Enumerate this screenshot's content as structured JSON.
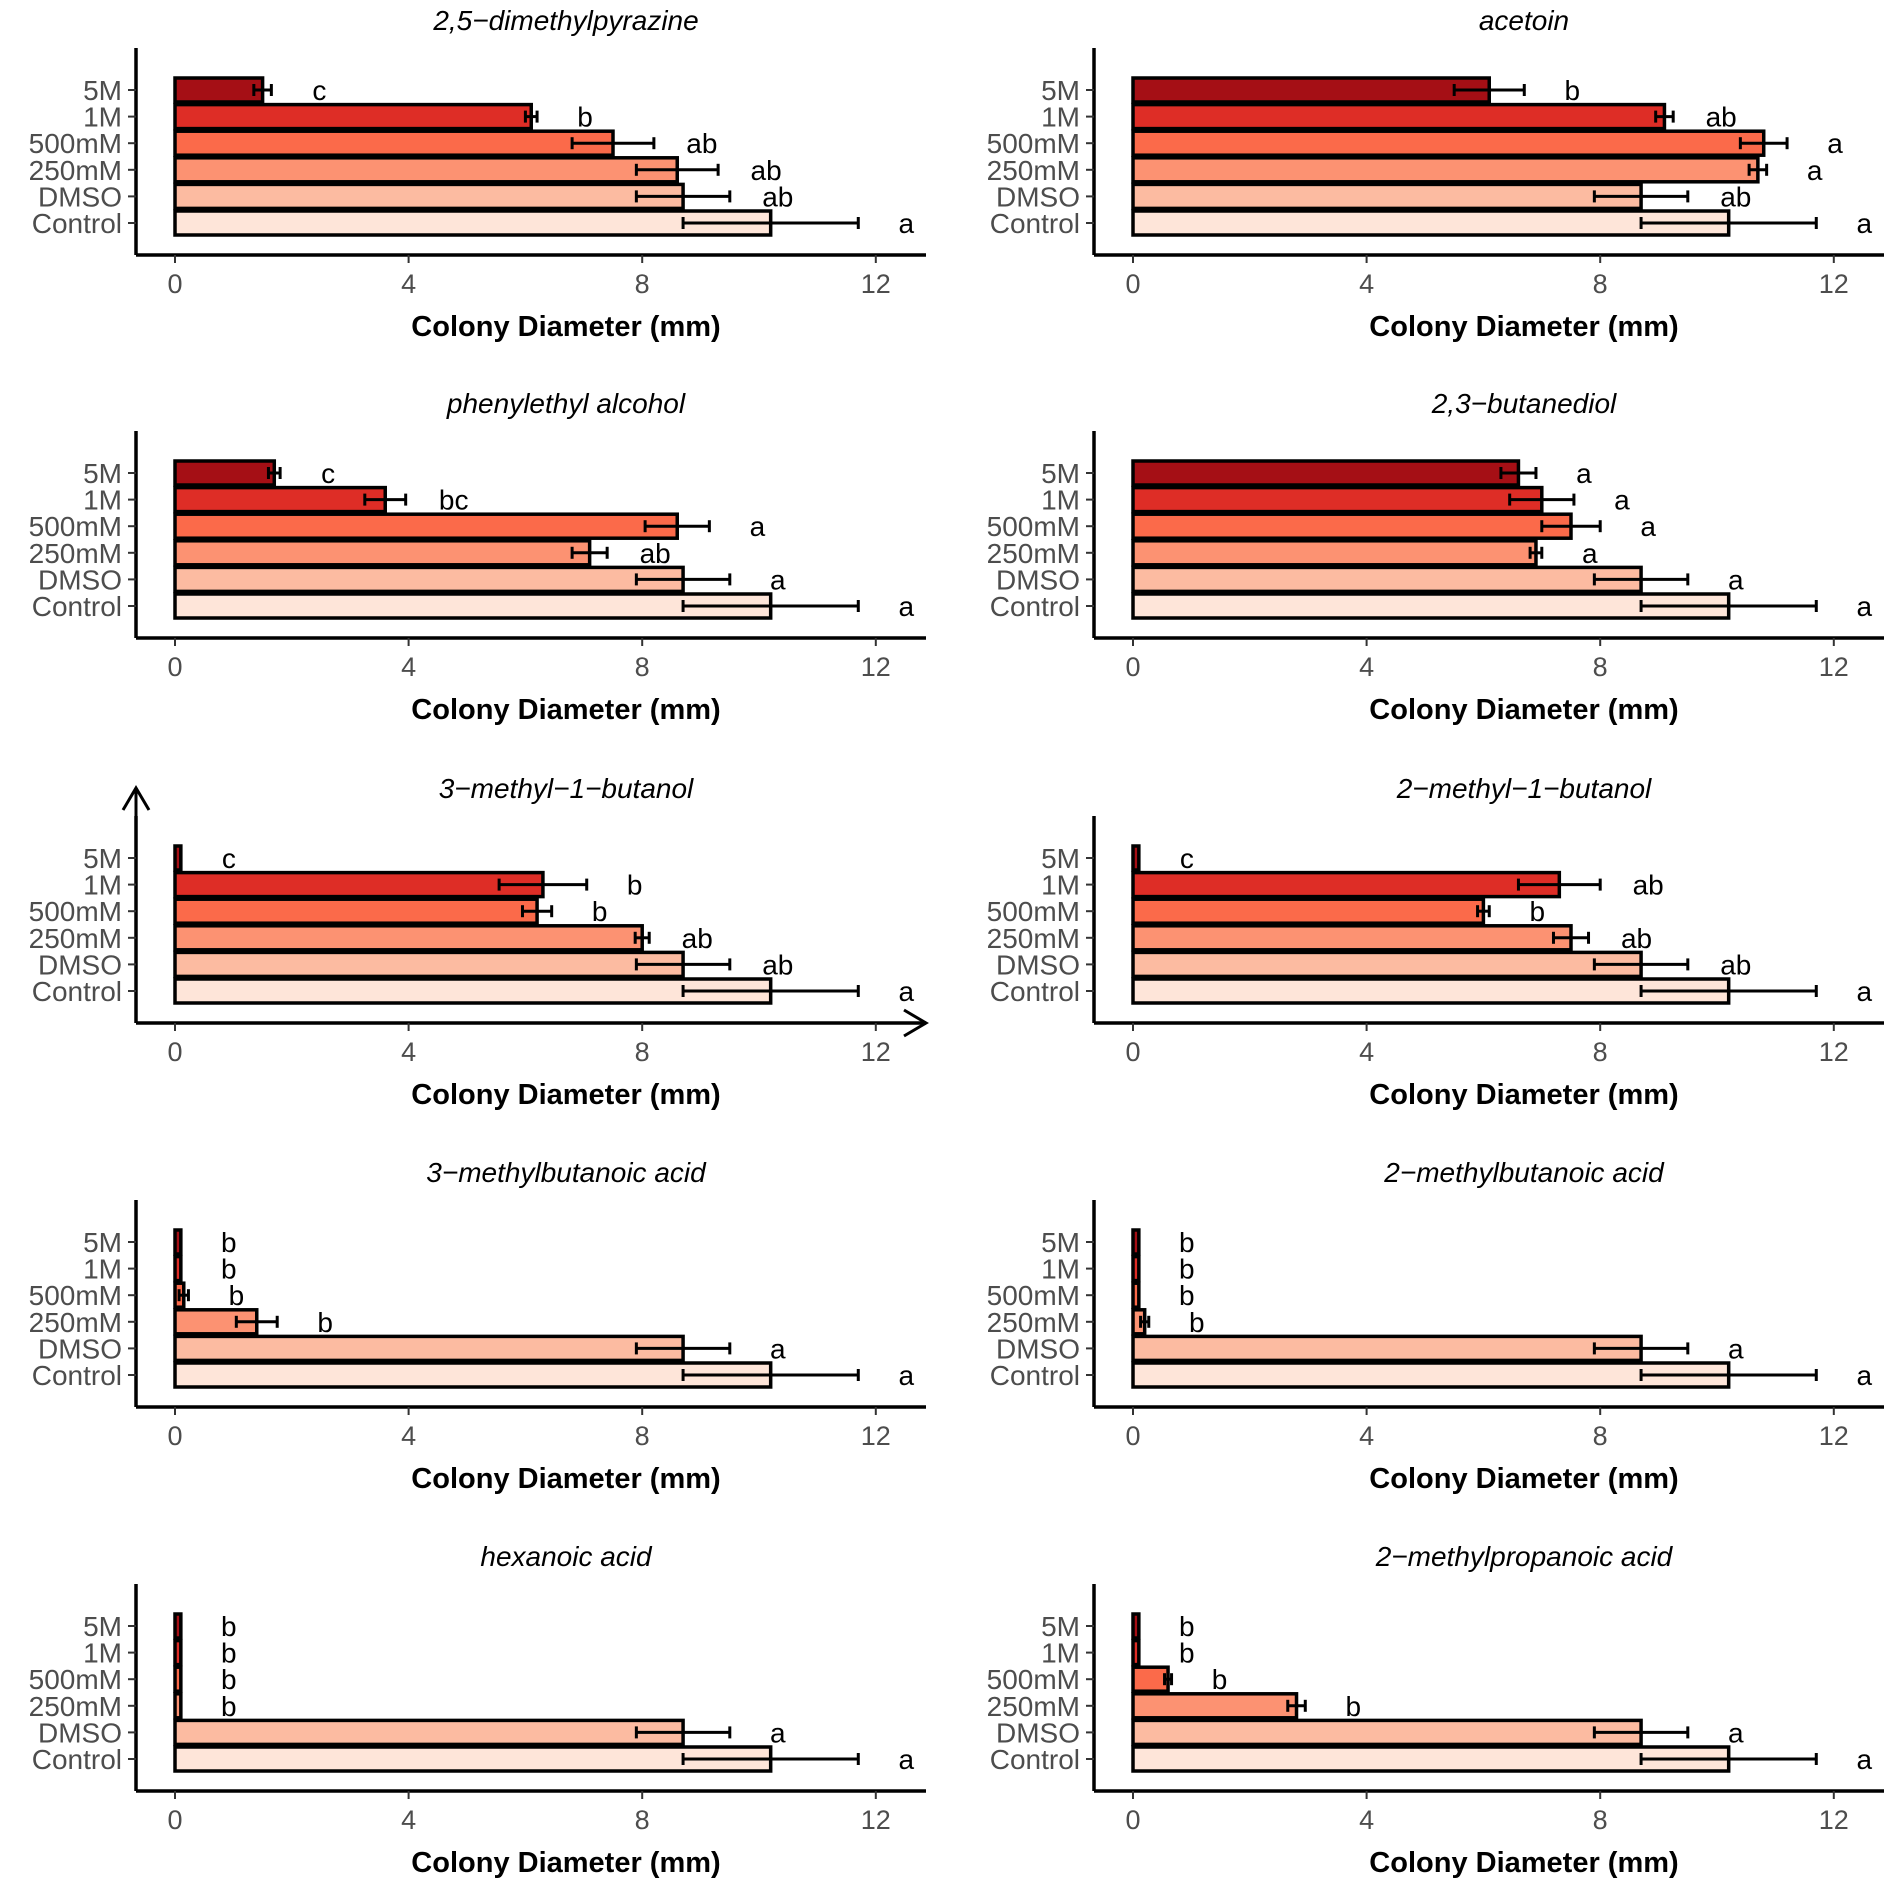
{
  "colors": {
    "5M": "#a50f15",
    "1M": "#de2d26",
    "500mM": "#fb6a4a",
    "250mM": "#fc9272",
    "DMSO": "#fcbba1",
    "Control": "#fee5d9"
  },
  "chart_data": [
    {
      "type": "bar",
      "orientation": "horizontal",
      "title": "2,5−dimethylpyrazine",
      "xlabel": "Colony Diameter (mm)",
      "xlim": [
        0,
        13
      ],
      "xticks": [
        "0",
        "4",
        "8",
        "12"
      ],
      "categories": [
        "5M",
        "1M",
        "500mM",
        "250mM",
        "DMSO",
        "Control"
      ],
      "values": [
        1.5,
        6.1,
        7.5,
        8.6,
        8.7,
        10.2
      ],
      "errors": [
        0.15,
        0.1,
        0.7,
        0.7,
        0.8,
        1.5
      ],
      "letters": [
        "c",
        "b",
        "ab",
        "ab",
        "ab",
        "a"
      ]
    },
    {
      "type": "bar",
      "orientation": "horizontal",
      "title": "acetoin",
      "xlabel": "Colony Diameter (mm)",
      "xlim": [
        0,
        13
      ],
      "xticks": [
        "0",
        "4",
        "8",
        "12"
      ],
      "categories": [
        "5M",
        "1M",
        "500mM",
        "250mM",
        "DMSO",
        "Control"
      ],
      "values": [
        6.1,
        9.1,
        10.8,
        10.7,
        8.7,
        10.2
      ],
      "errors": [
        0.6,
        0.15,
        0.4,
        0.15,
        0.8,
        1.5
      ],
      "letters": [
        "b",
        "ab",
        "a",
        "a",
        "ab",
        "a"
      ]
    },
    {
      "type": "bar",
      "orientation": "horizontal",
      "title": "phenylethyl alcohol",
      "xlabel": "Colony Diameter (mm)",
      "xlim": [
        0,
        13
      ],
      "xticks": [
        "0",
        "4",
        "8",
        "12"
      ],
      "categories": [
        "5M",
        "1M",
        "500mM",
        "250mM",
        "DMSO",
        "Control"
      ],
      "values": [
        1.7,
        3.6,
        8.6,
        7.1,
        8.7,
        10.2
      ],
      "errors": [
        0.1,
        0.35,
        0.55,
        0.3,
        0.8,
        1.5
      ],
      "letters": [
        "c",
        "bc",
        "a",
        "ab",
        "a",
        "a"
      ]
    },
    {
      "type": "bar",
      "orientation": "horizontal",
      "title": "2,3−butanediol",
      "xlabel": "Colony Diameter (mm)",
      "xlim": [
        0,
        13
      ],
      "xticks": [
        "0",
        "4",
        "8",
        "12"
      ],
      "categories": [
        "5M",
        "1M",
        "500mM",
        "250mM",
        "DMSO",
        "Control"
      ],
      "values": [
        6.6,
        7.0,
        7.5,
        6.9,
        8.7,
        10.2
      ],
      "errors": [
        0.3,
        0.55,
        0.5,
        0.1,
        0.8,
        1.5
      ],
      "letters": [
        "a",
        "a",
        "a",
        "a",
        "a",
        "a"
      ]
    },
    {
      "type": "bar",
      "orientation": "horizontal",
      "title": "3−methyl−1−butanol",
      "xlabel": "Colony Diameter (mm)",
      "xlim": [
        0,
        13
      ],
      "xticks": [
        "0",
        "4",
        "8",
        "12"
      ],
      "categories": [
        "5M",
        "1M",
        "500mM",
        "250mM",
        "DMSO",
        "Control"
      ],
      "values": [
        0.1,
        6.3,
        6.2,
        8.0,
        8.7,
        10.2
      ],
      "errors": [
        0,
        0.75,
        0.25,
        0.12,
        0.8,
        1.5
      ],
      "letters": [
        "c",
        "b",
        "b",
        "ab",
        "ab",
        "a"
      ]
    },
    {
      "type": "bar",
      "orientation": "horizontal",
      "title": "2−methyl−1−butanol",
      "xlabel": "Colony Diameter (mm)",
      "xlim": [
        0,
        13
      ],
      "xticks": [
        "0",
        "4",
        "8",
        "12"
      ],
      "categories": [
        "5M",
        "1M",
        "500mM",
        "250mM",
        "DMSO",
        "Control"
      ],
      "values": [
        0.1,
        7.3,
        6.0,
        7.5,
        8.7,
        10.2
      ],
      "errors": [
        0,
        0.7,
        0.1,
        0.3,
        0.8,
        1.5
      ],
      "letters": [
        "c",
        "ab",
        "b",
        "ab",
        "ab",
        "a"
      ]
    },
    {
      "type": "bar",
      "orientation": "horizontal",
      "title": "3−methylbutanoic acid",
      "xlabel": "Colony Diameter (mm)",
      "xlim": [
        0,
        13
      ],
      "xticks": [
        "0",
        "4",
        "8",
        "12"
      ],
      "categories": [
        "5M",
        "1M",
        "500mM",
        "250mM",
        "DMSO",
        "Control"
      ],
      "values": [
        0.1,
        0.1,
        0.15,
        1.4,
        8.7,
        10.2
      ],
      "errors": [
        0,
        0,
        0.08,
        0.35,
        0.8,
        1.5
      ],
      "letters": [
        "b",
        "b",
        "b",
        "b",
        "a",
        "a"
      ]
    },
    {
      "type": "bar",
      "orientation": "horizontal",
      "title": "2−methylbutanoic acid",
      "xlabel": "Colony Diameter (mm)",
      "xlim": [
        0,
        13
      ],
      "xticks": [
        "0",
        "4",
        "8",
        "12"
      ],
      "categories": [
        "5M",
        "1M",
        "500mM",
        "250mM",
        "DMSO",
        "Control"
      ],
      "values": [
        0.1,
        0.1,
        0.1,
        0.2,
        8.7,
        10.2
      ],
      "errors": [
        0,
        0,
        0,
        0.07,
        0.8,
        1.5
      ],
      "letters": [
        "b",
        "b",
        "b",
        "b",
        "a",
        "a"
      ]
    },
    {
      "type": "bar",
      "orientation": "horizontal",
      "title": "hexanoic acid",
      "xlabel": "Colony Diameter (mm)",
      "xlim": [
        0,
        13
      ],
      "xticks": [
        "0",
        "4",
        "8",
        "12"
      ],
      "categories": [
        "5M",
        "1M",
        "500mM",
        "250mM",
        "DMSO",
        "Control"
      ],
      "values": [
        0.1,
        0.1,
        0.1,
        0.1,
        8.7,
        10.2
      ],
      "errors": [
        0,
        0,
        0,
        0,
        0.8,
        1.5
      ],
      "letters": [
        "b",
        "b",
        "b",
        "b",
        "a",
        "a"
      ]
    },
    {
      "type": "bar",
      "orientation": "horizontal",
      "title": "2−methylpropanoic acid",
      "xlabel": "Colony Diameter (mm)",
      "xlim": [
        0,
        13
      ],
      "xticks": [
        "0",
        "4",
        "8",
        "12"
      ],
      "categories": [
        "5M",
        "1M",
        "500mM",
        "250mM",
        "DMSO",
        "Control"
      ],
      "values": [
        0.1,
        0.1,
        0.6,
        2.8,
        8.7,
        10.2
      ],
      "errors": [
        0,
        0,
        0.06,
        0.15,
        0.8,
        1.5
      ],
      "letters": [
        "b",
        "b",
        "b",
        "b",
        "a",
        "a"
      ]
    }
  ]
}
